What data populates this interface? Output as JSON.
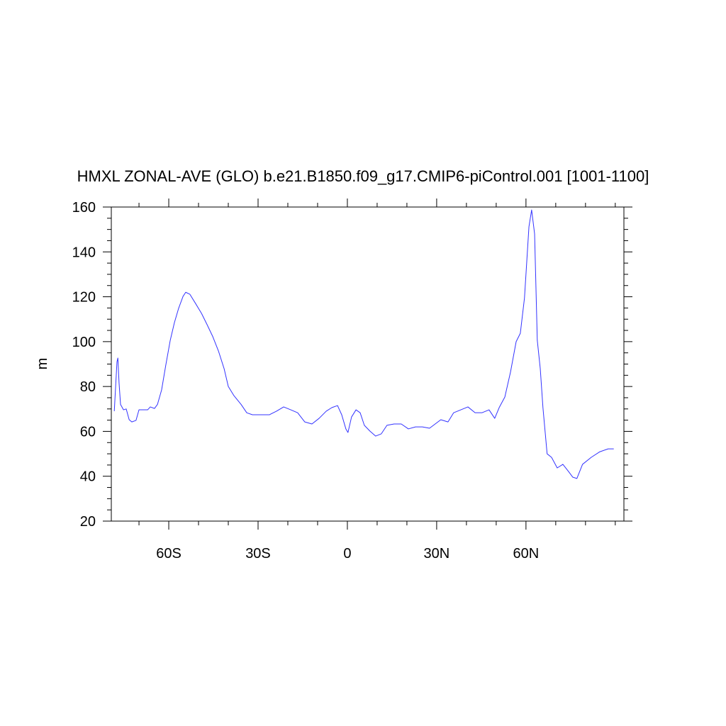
{
  "chart_data": {
    "type": "line",
    "title": "HMXL ZONAL-AVE (GLO) b.e21.B1850.f09_g17.CMIP6-piControl.001 [1001-1100]",
    "y_label": "m",
    "xlim": [
      -79.3,
      92.9
    ],
    "ylim": [
      20,
      160
    ],
    "xticks": [
      {
        "value": -60,
        "label": "60S"
      },
      {
        "value": -30,
        "label": "30S"
      },
      0,
      {
        "value": 30,
        "label": "30N"
      },
      {
        "value": 60,
        "label": "60N"
      }
    ],
    "xminorticks": [
      -70,
      -50,
      -40,
      -20,
      -10,
      10,
      20,
      40,
      50,
      70,
      80,
      90
    ],
    "yticks": [
      20,
      40,
      60,
      80,
      100,
      120,
      140,
      160
    ],
    "yminorticks": [
      25,
      30,
      35,
      45,
      50,
      55,
      65,
      70,
      75,
      85,
      90,
      95,
      105,
      110,
      115,
      125,
      130,
      135,
      145,
      150,
      155
    ],
    "series": [
      {
        "name": "HMXL",
        "color": "#3333ff",
        "x": [
          -78.3,
          -77.4,
          -77.1,
          -76.7,
          -76.2,
          -75.2,
          -74.3,
          -73.3,
          -72.4,
          -71,
          -70,
          -68.6,
          -67.1,
          -66.2,
          -64.8,
          -63.8,
          -62.4,
          -61,
          -59.5,
          -58.1,
          -56.7,
          -55.2,
          -54.3,
          -52.9,
          -51,
          -49,
          -47.1,
          -45.2,
          -43.3,
          -41.4,
          -40,
          -38.1,
          -35.7,
          -33.8,
          -31.9,
          -29.5,
          -26.2,
          -23.8,
          -21.4,
          -19,
          -16.7,
          -14.3,
          -11.9,
          -9.5,
          -7.1,
          -5.2,
          -3.3,
          -1.9,
          -0.5,
          0.2,
          1.4,
          2.9,
          4.3,
          5.7,
          7.6,
          9.5,
          11.4,
          13.3,
          15.7,
          18.1,
          20.5,
          22.9,
          25.2,
          27.6,
          29.5,
          31.4,
          33.8,
          35.7,
          38.1,
          40.5,
          42.9,
          45.2,
          47.6,
          49.5,
          51,
          52.9,
          54.8,
          56.7,
          58.1,
          59.5,
          61,
          61.9,
          62.9,
          63.8,
          64.8,
          65.7,
          67.1,
          68.6,
          70.5,
          72.4,
          74.3,
          75.7,
          77.1,
          79,
          81.9,
          84.8,
          87.6,
          89.5
        ],
        "values": [
          69,
          91,
          92.7,
          81.6,
          72,
          69.6,
          70,
          65.2,
          64.2,
          64.9,
          69.6,
          69.6,
          69.6,
          70.9,
          70.2,
          72,
          78.5,
          89.5,
          100.6,
          108.5,
          114.8,
          120.2,
          122,
          121.1,
          117,
          112.6,
          107.5,
          102.2,
          95.8,
          87.9,
          80,
          75.9,
          72,
          68.3,
          67.4,
          67.4,
          67.4,
          69,
          70.9,
          69.6,
          68.3,
          64.2,
          63.3,
          65.8,
          69,
          70.6,
          71.5,
          67.4,
          61.1,
          59.5,
          66.4,
          69.6,
          68.3,
          62.7,
          60.1,
          57.9,
          58.9,
          62.7,
          63.3,
          63.3,
          61.1,
          62,
          62,
          61.4,
          63.3,
          65.2,
          64.2,
          68.3,
          69.6,
          70.9,
          68.3,
          68.3,
          69.6,
          65.8,
          70.6,
          75.3,
          86.4,
          100,
          103.7,
          119.5,
          151.2,
          158.7,
          148,
          100.6,
          88,
          70.6,
          50,
          48.4,
          43.7,
          45.3,
          42.1,
          39.6,
          39,
          45.3,
          48.4,
          50.9,
          52.2,
          52.2
        ]
      }
    ]
  }
}
